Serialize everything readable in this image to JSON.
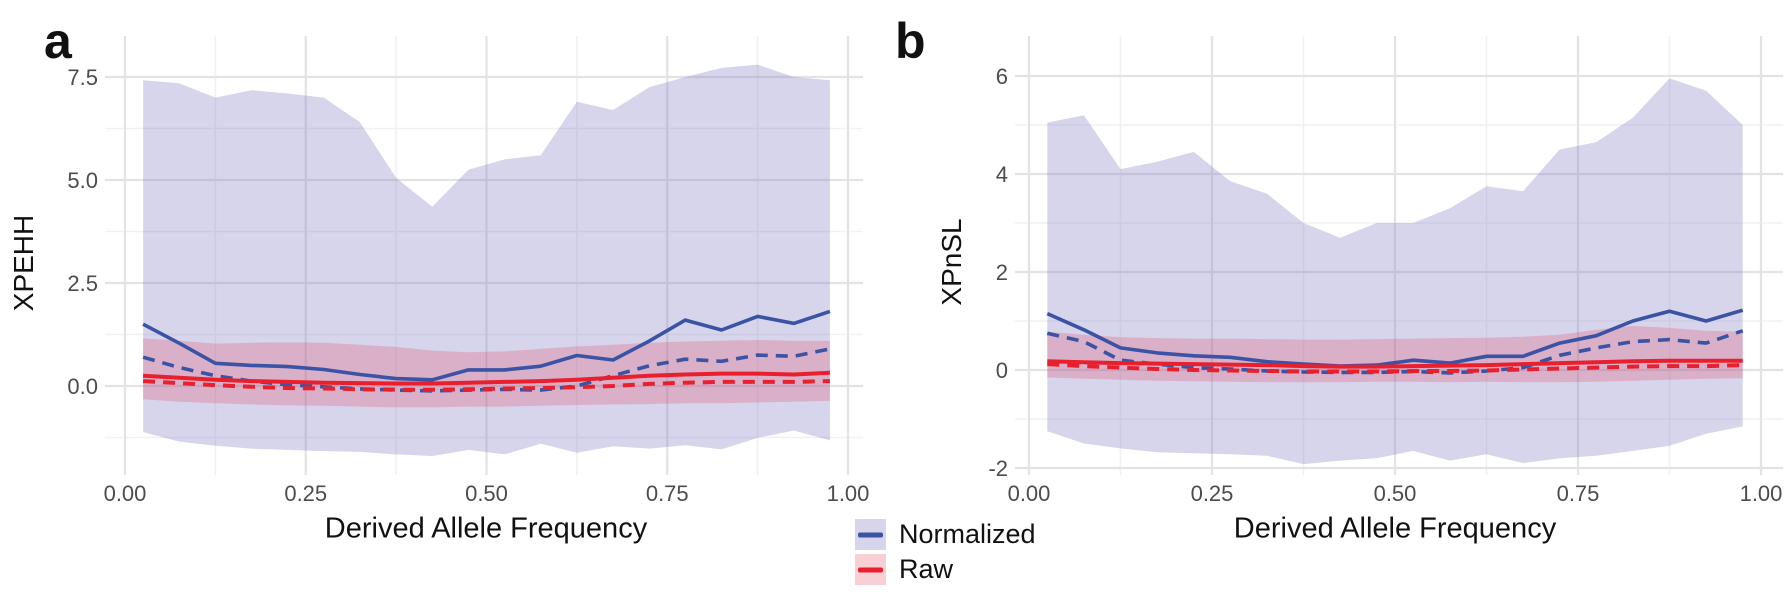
{
  "figure": {
    "background": "#ffffff",
    "gridline_major_color": "#e3e3e3",
    "gridline_minor_color": "#f1f1f1"
  },
  "legend": {
    "position": "bottom-center",
    "items": [
      {
        "label": "Normalized",
        "line_color": "#3A53A4",
        "swatch_fill": "#d6d5ec"
      },
      {
        "label": "Raw",
        "line_color": "#E8202E",
        "swatch_fill": "#f9cfd6"
      }
    ]
  },
  "chart_data": [
    {
      "type": "line",
      "panel_label": "a",
      "title": "",
      "xlabel": "Derived Allele Frequency",
      "ylabel": "XPEHH",
      "xlim": [
        -0.02,
        1.02
      ],
      "ylim": [
        -2.14,
        8.5
      ],
      "grid": true,
      "legend_position": "bottom",
      "x_ticks": {
        "values": [
          0,
          0.25,
          0.5,
          0.75,
          1.0
        ],
        "labels": [
          "0.00",
          "0.25",
          "0.50",
          "0.75",
          "1.00"
        ]
      },
      "y_ticks": {
        "values": [
          0,
          2.5,
          5.0,
          7.5
        ],
        "labels": [
          "0.0",
          "2.5",
          "5.0",
          "7.5"
        ]
      },
      "x_minor": [
        0.125,
        0.375,
        0.625,
        0.875
      ],
      "y_minor": [
        -1.25,
        1.25,
        3.75,
        6.25
      ],
      "x": [
        0.025,
        0.075,
        0.125,
        0.175,
        0.225,
        0.275,
        0.325,
        0.375,
        0.425,
        0.475,
        0.525,
        0.575,
        0.625,
        0.675,
        0.725,
        0.775,
        0.825,
        0.875,
        0.925,
        0.975
      ],
      "ribbons": [
        {
          "name": "Normalized range",
          "color": "#827EC4",
          "opacity": 0.33,
          "upper": [
            7.42,
            7.35,
            7.0,
            7.18,
            7.1,
            7.0,
            6.4,
            5.05,
            4.35,
            5.25,
            5.5,
            5.6,
            6.9,
            6.7,
            7.25,
            7.5,
            7.72,
            7.8,
            7.5,
            7.42
          ],
          "lower": [
            -1.12,
            -1.35,
            -1.45,
            -1.52,
            -1.55,
            -1.58,
            -1.6,
            -1.66,
            -1.7,
            -1.55,
            -1.66,
            -1.4,
            -1.62,
            -1.46,
            -1.52,
            -1.44,
            -1.54,
            -1.26,
            -1.08,
            -1.32
          ]
        },
        {
          "name": "Raw range",
          "color": "#E84664",
          "opacity": 0.26,
          "upper": [
            1.16,
            1.1,
            1.03,
            1.05,
            1.06,
            1.05,
            1.0,
            0.95,
            0.86,
            0.82,
            0.84,
            0.9,
            0.96,
            1.0,
            1.05,
            1.08,
            1.1,
            1.12,
            1.1,
            1.1
          ],
          "lower": [
            -0.32,
            -0.38,
            -0.42,
            -0.45,
            -0.47,
            -0.48,
            -0.5,
            -0.52,
            -0.52,
            -0.5,
            -0.5,
            -0.48,
            -0.46,
            -0.45,
            -0.44,
            -0.42,
            -0.42,
            -0.4,
            -0.38,
            -0.36
          ]
        }
      ],
      "series": [
        {
          "name": "Normalized solid",
          "color": "#3A53A4",
          "dash": "solid",
          "width": 3.6,
          "values": [
            1.5,
            1.04,
            0.55,
            0.5,
            0.47,
            0.4,
            0.28,
            0.18,
            0.15,
            0.39,
            0.39,
            0.48,
            0.74,
            0.63,
            1.09,
            1.6,
            1.36,
            1.69,
            1.52,
            1.81
          ]
        },
        {
          "name": "Normalized dashed",
          "color": "#3A53A4",
          "dash": "dashed",
          "width": 3.6,
          "values": [
            0.7,
            0.45,
            0.25,
            0.12,
            0.03,
            -0.02,
            -0.07,
            -0.1,
            -0.12,
            -0.1,
            -0.08,
            -0.1,
            0.0,
            0.25,
            0.49,
            0.65,
            0.6,
            0.75,
            0.72,
            0.9
          ]
        },
        {
          "name": "Raw solid",
          "color": "#E8202E",
          "dash": "solid",
          "width": 4,
          "values": [
            0.25,
            0.2,
            0.15,
            0.12,
            0.1,
            0.08,
            0.07,
            0.06,
            0.06,
            0.08,
            0.1,
            0.12,
            0.15,
            0.2,
            0.25,
            0.28,
            0.3,
            0.3,
            0.28,
            0.32
          ]
        },
        {
          "name": "Raw dashed",
          "color": "#E8202E",
          "dash": "dashed",
          "width": 4,
          "values": [
            0.12,
            0.07,
            0.02,
            -0.02,
            -0.05,
            -0.06,
            -0.08,
            -0.09,
            -0.09,
            -0.08,
            -0.06,
            -0.05,
            -0.03,
            0.0,
            0.05,
            0.08,
            0.1,
            0.1,
            0.1,
            0.12
          ]
        }
      ]
    },
    {
      "type": "line",
      "panel_label": "b",
      "title": "",
      "xlabel": "Derived Allele Frequency",
      "ylabel": "XPnSL",
      "xlim": [
        -0.02,
        1.03
      ],
      "ylim": [
        -2.12,
        6.82
      ],
      "grid": true,
      "legend_position": "bottom",
      "x_ticks": {
        "values": [
          0,
          0.25,
          0.5,
          0.75,
          1.0
        ],
        "labels": [
          "0.00",
          "0.25",
          "0.50",
          "0.75",
          "1.00"
        ]
      },
      "y_ticks": {
        "values": [
          -2,
          0,
          2,
          4,
          6
        ],
        "labels": [
          "-2",
          "0",
          "2",
          "4",
          "6"
        ]
      },
      "x_minor": [
        0.125,
        0.375,
        0.625,
        0.875
      ],
      "y_minor": [
        -1,
        1,
        3,
        5
      ],
      "x": [
        0.025,
        0.075,
        0.125,
        0.175,
        0.225,
        0.275,
        0.325,
        0.375,
        0.425,
        0.475,
        0.525,
        0.575,
        0.625,
        0.675,
        0.725,
        0.775,
        0.825,
        0.875,
        0.925,
        0.975
      ],
      "ribbons": [
        {
          "name": "Normalized range",
          "color": "#827EC4",
          "opacity": 0.33,
          "upper": [
            5.05,
            5.2,
            4.1,
            4.25,
            4.45,
            3.85,
            3.6,
            3.0,
            2.7,
            3.0,
            3.0,
            3.3,
            3.75,
            3.65,
            4.5,
            4.65,
            5.15,
            5.95,
            5.7,
            5.0
          ],
          "lower": [
            -1.25,
            -1.5,
            -1.6,
            -1.68,
            -1.7,
            -1.72,
            -1.75,
            -1.92,
            -1.85,
            -1.8,
            -1.65,
            -1.85,
            -1.72,
            -1.9,
            -1.8,
            -1.75,
            -1.65,
            -1.55,
            -1.3,
            -1.15
          ]
        },
        {
          "name": "Raw range",
          "color": "#E84664",
          "opacity": 0.26,
          "upper": [
            0.78,
            0.72,
            0.67,
            0.65,
            0.64,
            0.64,
            0.63,
            0.62,
            0.62,
            0.63,
            0.64,
            0.65,
            0.66,
            0.68,
            0.72,
            0.82,
            0.9,
            0.86,
            0.8,
            0.78
          ],
          "lower": [
            -0.15,
            -0.18,
            -0.2,
            -0.22,
            -0.23,
            -0.24,
            -0.25,
            -0.25,
            -0.25,
            -0.24,
            -0.24,
            -0.25,
            -0.24,
            -0.25,
            -0.25,
            -0.24,
            -0.22,
            -0.2,
            -0.18,
            -0.17
          ]
        }
      ],
      "series": [
        {
          "name": "Normalized solid",
          "color": "#3A53A4",
          "dash": "solid",
          "width": 3.6,
          "values": [
            1.15,
            0.82,
            0.45,
            0.35,
            0.29,
            0.26,
            0.17,
            0.12,
            0.08,
            0.1,
            0.2,
            0.14,
            0.28,
            0.28,
            0.55,
            0.7,
            1.0,
            1.2,
            1.0,
            1.22
          ]
        },
        {
          "name": "Normalized dashed",
          "color": "#3A53A4",
          "dash": "dashed",
          "width": 3.6,
          "values": [
            0.75,
            0.58,
            0.2,
            0.12,
            0.05,
            0.02,
            -0.02,
            -0.04,
            -0.05,
            -0.05,
            -0.03,
            -0.06,
            -0.02,
            0.05,
            0.3,
            0.45,
            0.58,
            0.62,
            0.55,
            0.8
          ]
        },
        {
          "name": "Raw solid",
          "color": "#E8202E",
          "dash": "solid",
          "width": 4,
          "values": [
            0.18,
            0.16,
            0.14,
            0.13,
            0.12,
            0.11,
            0.1,
            0.08,
            0.07,
            0.07,
            0.08,
            0.09,
            0.1,
            0.12,
            0.14,
            0.16,
            0.18,
            0.19,
            0.19,
            0.19
          ]
        },
        {
          "name": "Raw dashed",
          "color": "#E8202E",
          "dash": "dashed",
          "width": 4,
          "values": [
            0.12,
            0.08,
            0.05,
            0.02,
            0.0,
            -0.01,
            -0.02,
            -0.03,
            -0.03,
            -0.03,
            -0.02,
            -0.02,
            -0.01,
            0.01,
            0.03,
            0.05,
            0.07,
            0.08,
            0.08,
            0.1
          ]
        }
      ]
    }
  ]
}
